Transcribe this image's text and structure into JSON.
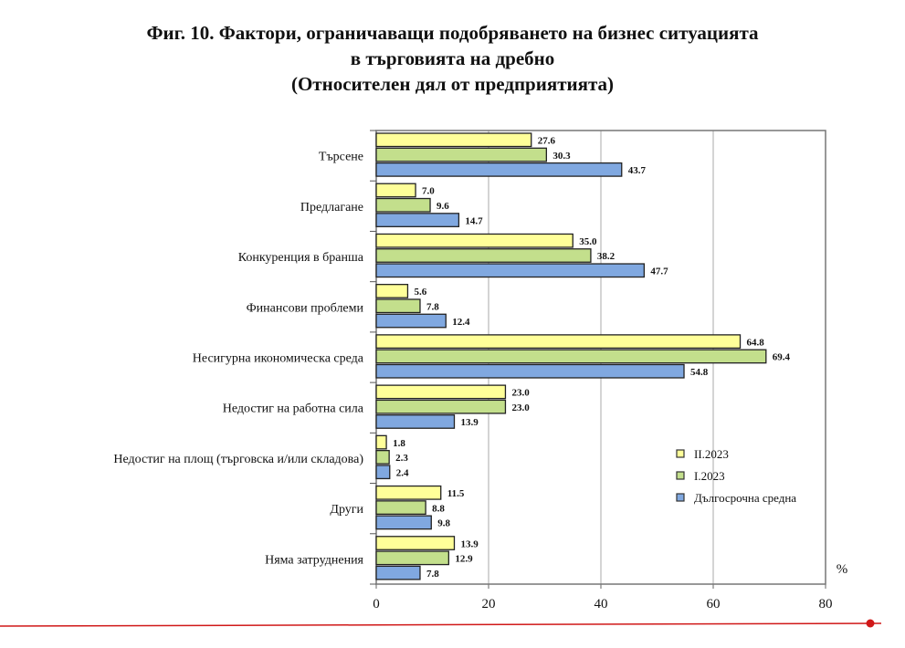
{
  "title_lines": [
    "Фиг. 10. Фактори, ограничаващи подобряването на бизнес ситуацията",
    "в търговията на дребно",
    "(Относителен дял от предприятията)"
  ],
  "chart_data": {
    "type": "bar",
    "orientation": "horizontal",
    "title": "Фиг. 10. Фактори, ограничаващи подобряването на бизнес ситуацията в търговията на дребно (Относителен дял от предприятията)",
    "categories": [
      "Търсене",
      "Предлагане",
      "Конкуренция в бранша",
      "Финансови проблеми",
      "Несигурна икономическа среда",
      "Недостиг на работна сила",
      "Недостиг на площ (търговска и/или складова)",
      "Други",
      "Няма затруднения"
    ],
    "series": [
      {
        "name": "II.2023",
        "color": "#ffff99",
        "values": [
          27.6,
          7.0,
          35.0,
          5.6,
          64.8,
          23.0,
          1.8,
          11.5,
          13.9
        ]
      },
      {
        "name": "I.2023",
        "color": "#c3df8c",
        "values": [
          30.3,
          9.6,
          38.2,
          7.8,
          69.4,
          23.0,
          2.3,
          8.8,
          12.9
        ]
      },
      {
        "name": "Дългосрочна средна",
        "color": "#80a8e0",
        "values": [
          43.7,
          14.7,
          47.7,
          12.4,
          54.8,
          13.9,
          2.4,
          9.8,
          7.8
        ]
      }
    ],
    "xlabel": "%",
    "xlim": [
      0,
      80
    ],
    "xticks": [
      "0",
      "20",
      "40",
      "60",
      "80"
    ],
    "grid": true,
    "legend_position": "right"
  }
}
